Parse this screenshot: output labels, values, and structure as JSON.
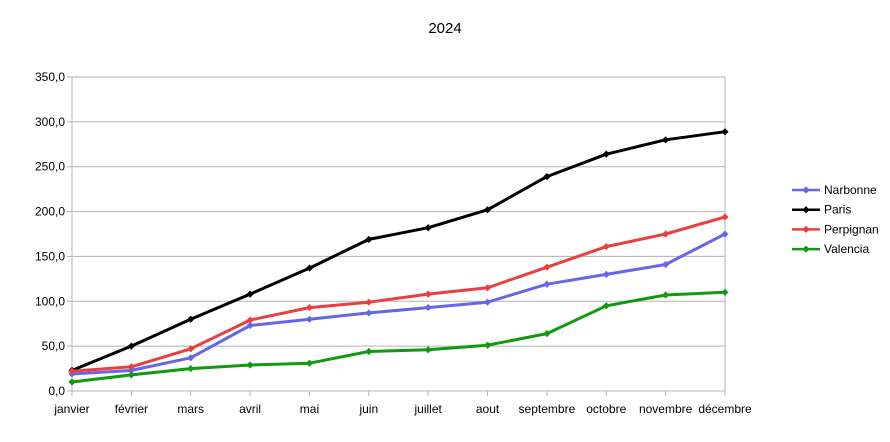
{
  "chart_data": {
    "type": "line",
    "title": "2024",
    "xlabel": "",
    "ylabel": "",
    "categories": [
      "janvier",
      "février",
      "mars",
      "avril",
      "mai",
      "juin",
      "juillet",
      "aout",
      "septembre",
      "octobre",
      "novembre",
      "décembre"
    ],
    "ylim": [
      0,
      350
    ],
    "yticks": [
      "0,0",
      "50,0",
      "100,0",
      "150,0",
      "200,0",
      "250,0",
      "300,0",
      "350,0"
    ],
    "grid": true,
    "legend_position": "right",
    "series": [
      {
        "name": "Narbonne",
        "color": "#6666e8",
        "values": [
          19,
          23,
          37,
          73,
          80,
          87,
          93,
          99,
          119,
          130,
          141,
          175
        ]
      },
      {
        "name": "Paris",
        "color": "#000000",
        "values": [
          23,
          50,
          80,
          108,
          137,
          169,
          182,
          202,
          239,
          264,
          280,
          289
        ]
      },
      {
        "name": "Perpignan",
        "color": "#e84040",
        "values": [
          22,
          27,
          47,
          79,
          93,
          99,
          108,
          115,
          138,
          161,
          175,
          194
        ]
      },
      {
        "name": "Valencia",
        "color": "#119911",
        "values": [
          10,
          18,
          25,
          29,
          31,
          44,
          46,
          51,
          64,
          95,
          107,
          110
        ]
      }
    ]
  }
}
